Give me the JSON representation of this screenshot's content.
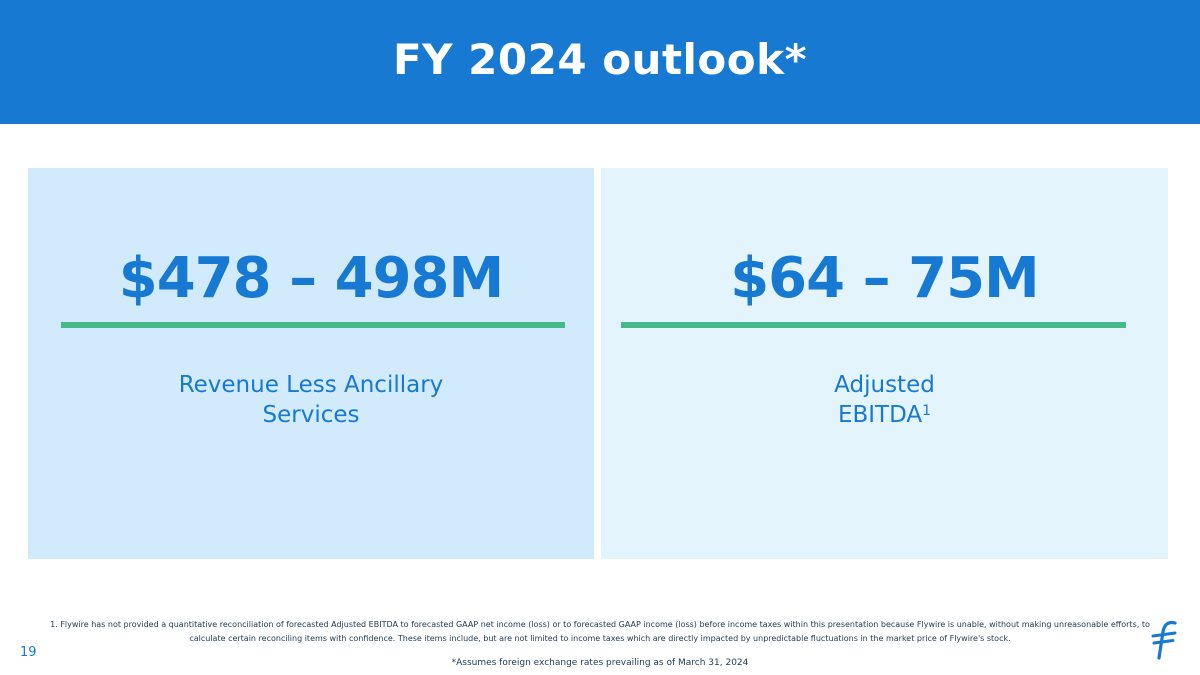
{
  "header": {
    "title": "FY 2024 outlook*"
  },
  "panels": [
    {
      "metric": "$478 – 498M",
      "label_line1": "Revenue Less Ancillary",
      "label_line2": "Services"
    },
    {
      "metric": "$64 – 75M",
      "label_line1": "Adjusted",
      "label_line2": "EBITDA",
      "label_superscript": "1"
    }
  ],
  "footer": {
    "footnote": "1. Flywire has not provided a quantitative reconciliation of forecasted Adjusted EBITDA to forecasted GAAP net income (loss) or to forecasted GAAP income (loss) before income taxes within this presentation because Flywire is unable, without making unreasonable efforts, to calculate certain reconciling items with confidence. These items include, but are not limited to income taxes which are directly impacted by unpredictable fluctuations in the market price of Flywire's stock.",
    "assumption": "*Assumes foreign exchange rates prevailing as of March 31, 2024",
    "page_number": "19"
  },
  "colors": {
    "header_blue": "#1779d1",
    "accent_green": "#46b98a",
    "panel_left_bg": "#d1eafc",
    "panel_right_bg": "#e3f4fc"
  },
  "icons": {
    "logo": "flywire-logo-icon"
  }
}
